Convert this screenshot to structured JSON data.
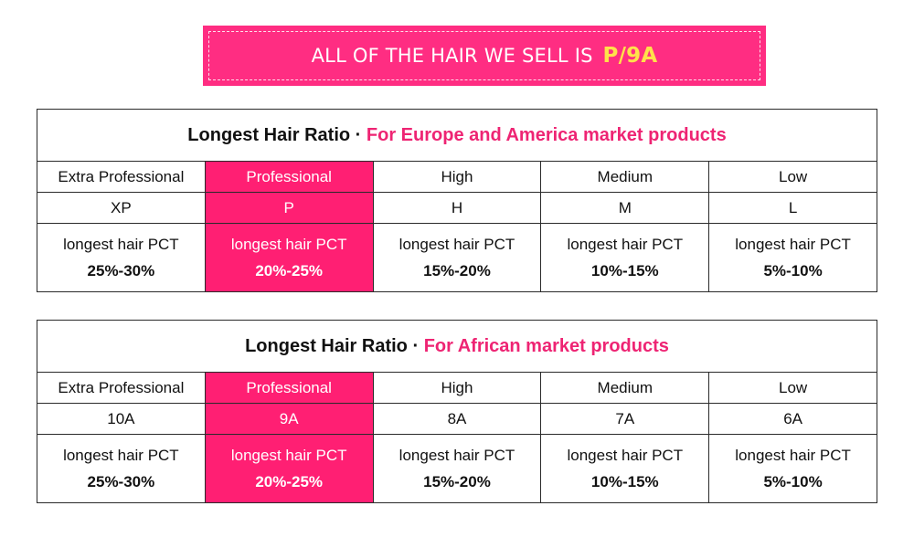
{
  "banner": {
    "text": "ALL OF THE HAIR WE SELL IS",
    "grade": "P/9A"
  },
  "tables": [
    {
      "title": "Longest Hair Ratio",
      "separator": "·",
      "subtitle": "For Europe and America market products",
      "columns": [
        {
          "level": "Extra Professional",
          "code": "XP",
          "pct_label": "longest hair PCT",
          "pct": "25%-30%"
        },
        {
          "level": "Professional",
          "code": "P",
          "pct_label": "longest hair PCT",
          "pct": "20%-25%"
        },
        {
          "level": "High",
          "code": "H",
          "pct_label": "longest hair PCT",
          "pct": "15%-20%"
        },
        {
          "level": "Medium",
          "code": "M",
          "pct_label": "longest hair PCT",
          "pct": "10%-15%"
        },
        {
          "level": "Low",
          "code": "L",
          "pct_label": "longest hair PCT",
          "pct": "5%-10%"
        }
      ]
    },
    {
      "title": "Longest Hair Ratio",
      "separator": "·",
      "subtitle": "For African market products",
      "columns": [
        {
          "level": "Extra Professional",
          "code": "10A",
          "pct_label": "longest hair PCT",
          "pct": "25%-30%"
        },
        {
          "level": "Professional",
          "code": "9A",
          "pct_label": "longest hair PCT",
          "pct": "20%-25%"
        },
        {
          "level": "High",
          "code": "8A",
          "pct_label": "longest hair PCT",
          "pct": "15%-20%"
        },
        {
          "level": "Medium",
          "code": "7A",
          "pct_label": "longest hair PCT",
          "pct": "10%-15%"
        },
        {
          "level": "Low",
          "code": "6A",
          "pct_label": "longest hair PCT",
          "pct": "5%-10%"
        }
      ]
    }
  ],
  "colors": {
    "banner": "#ff2d82",
    "highlight": "#ff1f73",
    "accent_text": "#ee2473",
    "grade_text": "#ffe14a"
  }
}
